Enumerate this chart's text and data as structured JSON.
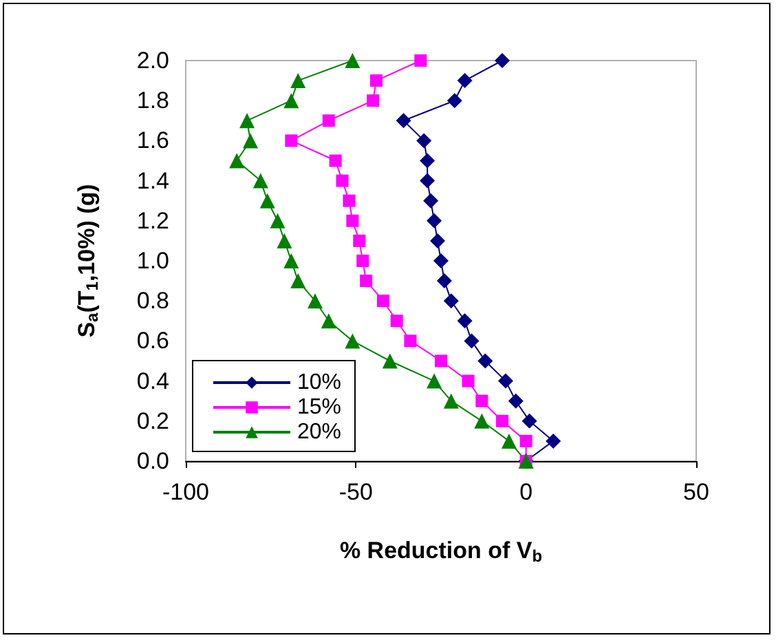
{
  "chart_data": {
    "type": "line",
    "xlabel": "% Reduction of V$_{b}$",
    "ylabel": "S$_{a}$(T$_{1}$,10%) (g)",
    "series": [
      {
        "name": "10%",
        "color": "#000080",
        "marker": "diamond",
        "x": [
          0,
          8,
          1,
          -3,
          -6,
          -12,
          -16,
          -18,
          -22,
          -24,
          -25,
          -26,
          -27,
          -28,
          -29,
          -29,
          -30,
          -36,
          -21,
          -18,
          -7
        ],
        "values": [
          0,
          0.1,
          0.2,
          0.3,
          0.4,
          0.5,
          0.6,
          0.7,
          0.8,
          0.9,
          1.0,
          1.1,
          1.2,
          1.3,
          1.4,
          1.5,
          1.6,
          1.7,
          1.8,
          1.9,
          2.0
        ]
      },
      {
        "name": "15%",
        "color": "#ff00ff",
        "marker": "square",
        "x": [
          0,
          0,
          -7,
          -13,
          -17,
          -25,
          -34,
          -38,
          -42,
          -47,
          -48,
          -49,
          -51,
          -52,
          -54,
          -56,
          -69,
          -58,
          -45,
          -44,
          -31
        ],
        "values": [
          0,
          0.1,
          0.2,
          0.3,
          0.4,
          0.5,
          0.6,
          0.7,
          0.8,
          0.9,
          1.0,
          1.1,
          1.2,
          1.3,
          1.4,
          1.5,
          1.6,
          1.7,
          1.8,
          1.9,
          2.0
        ]
      },
      {
        "name": "20%",
        "color": "#008000",
        "marker": "triangle",
        "x": [
          0,
          -5,
          -13,
          -22,
          -27,
          -40,
          -51,
          -58,
          -62,
          -67,
          -69,
          -71,
          -73,
          -76,
          -78,
          -85,
          -81,
          -82,
          -69,
          -67,
          -51
        ],
        "values": [
          0,
          0.1,
          0.2,
          0.3,
          0.4,
          0.5,
          0.6,
          0.7,
          0.8,
          0.9,
          1.0,
          1.1,
          1.2,
          1.3,
          1.4,
          1.5,
          1.6,
          1.7,
          1.8,
          1.9,
          2.0
        ]
      }
    ],
    "xlim": [
      -100,
      50
    ],
    "xticks": [
      -100,
      -50,
      0,
      50
    ],
    "ylim": [
      0,
      2
    ],
    "yticks": [
      {
        "value": 0,
        "label": "0.0"
      },
      {
        "value": 0.2,
        "label": "0.2"
      },
      {
        "value": 0.4,
        "label": "0.4"
      },
      {
        "value": 0.6,
        "label": "0.6"
      },
      {
        "value": 0.8,
        "label": "0.8"
      },
      {
        "value": 1.0,
        "label": "1.0"
      },
      {
        "value": 1.2,
        "label": "1.2"
      },
      {
        "value": 1.4,
        "label": "1.4"
      },
      {
        "value": 1.6,
        "label": "1.6"
      },
      {
        "value": 1.8,
        "label": "1.8"
      },
      {
        "value": 2.0,
        "label": "2.0"
      }
    ],
    "grid": false,
    "legend": "bottom left",
    "line_style": "solid"
  }
}
